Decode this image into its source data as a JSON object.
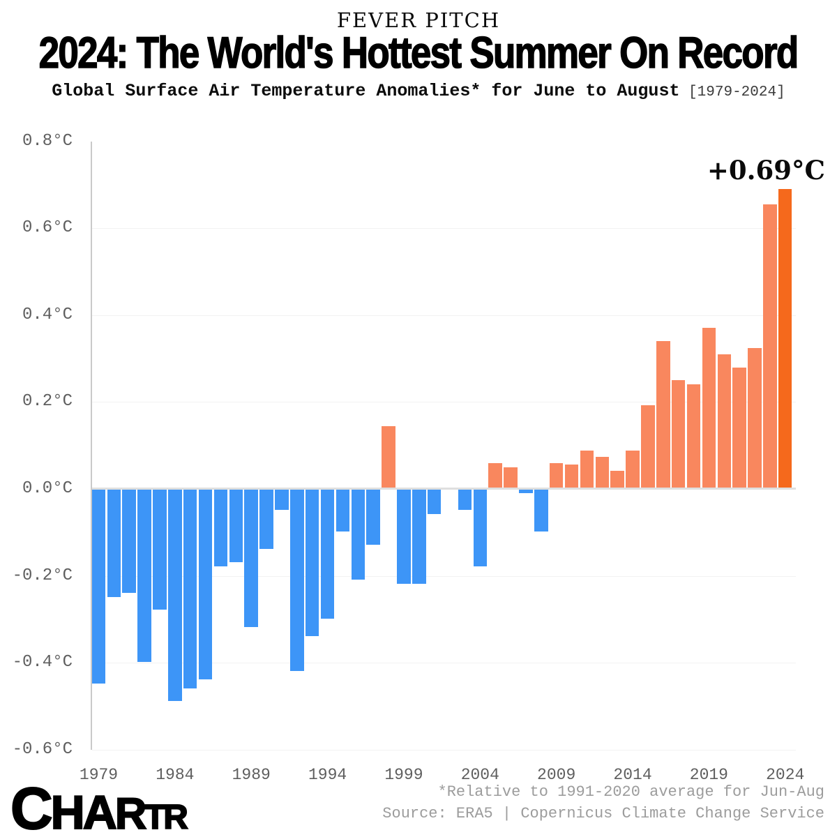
{
  "header": {
    "kicker": "FEVER PITCH",
    "title": "2024: The World's Hottest Summer On Record",
    "subtitle": "Global Surface Air Temperature Anomalies* for June to August",
    "subtitle_range": " [1979-2024]"
  },
  "annotation": {
    "peak_label": "+0.69°C"
  },
  "chart_data": {
    "type": "bar",
    "title": "2024: The World's Hottest Summer On Record",
    "subtitle": "Global Surface Air Temperature Anomalies for June to August, 1979-2024, relative to 1991-2020 average",
    "unit": "°C",
    "x": [
      1979,
      1980,
      1981,
      1982,
      1983,
      1984,
      1985,
      1986,
      1987,
      1988,
      1989,
      1990,
      1991,
      1992,
      1993,
      1994,
      1995,
      1996,
      1997,
      1998,
      1999,
      2000,
      2001,
      2002,
      2003,
      2004,
      2005,
      2006,
      2007,
      2008,
      2009,
      2010,
      2011,
      2012,
      2013,
      2014,
      2015,
      2016,
      2017,
      2018,
      2019,
      2020,
      2021,
      2022,
      2023,
      2024
    ],
    "values": [
      -0.45,
      -0.25,
      -0.24,
      -0.4,
      -0.28,
      -0.49,
      -0.46,
      -0.44,
      -0.18,
      -0.17,
      -0.32,
      -0.14,
      -0.05,
      -0.42,
      -0.34,
      -0.3,
      -0.1,
      -0.21,
      -0.13,
      0.145,
      -0.22,
      -0.22,
      -0.06,
      0.0,
      -0.05,
      -0.18,
      0.06,
      0.05,
      -0.012,
      -0.1,
      0.06,
      0.056,
      0.088,
      0.074,
      0.041,
      0.088,
      0.192,
      0.34,
      0.25,
      0.24,
      0.37,
      0.31,
      0.28,
      0.325,
      0.655,
      0.69
    ],
    "highlight_year": 2024,
    "peak_value_label": "+0.69°C",
    "yticks": [
      0.8,
      0.6,
      0.4,
      0.2,
      0.0,
      -0.2,
      -0.4,
      -0.6
    ],
    "ytick_labels": [
      "0.8°C",
      "0.6°C",
      "0.4°C",
      "0.2°C",
      "0.0°C",
      "-0.2°C",
      "-0.4°C",
      "-0.6°C"
    ],
    "xticks": [
      1979,
      1984,
      1989,
      1994,
      1999,
      2004,
      2009,
      2014,
      2019,
      2024
    ],
    "ylim": [
      -0.6,
      0.8
    ],
    "grid": "horizontal",
    "legend": "none",
    "colors": {
      "positive": "#F9875E",
      "negative": "#3D95F7",
      "highlight": "#F5691C",
      "zero_line": "#DFDFDF",
      "gridline": "#F2F2F2",
      "axis_text": "#5E5E5E"
    }
  },
  "footer": {
    "note": "*Relative to 1991-2020 average for Jun-Aug",
    "source": "Source: ERA5 | Copernicus Climate Change Service",
    "logo": "CHARTR",
    "logo_letters": [
      "C",
      "H",
      "A",
      "R",
      "T",
      "R"
    ]
  }
}
